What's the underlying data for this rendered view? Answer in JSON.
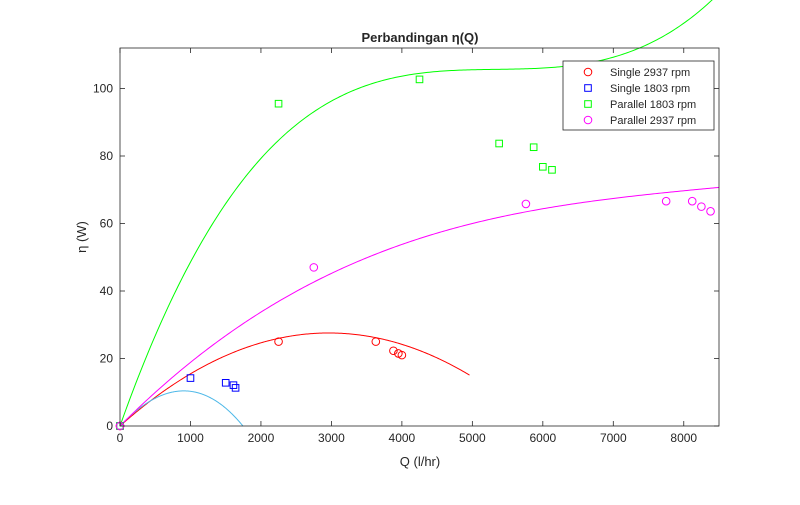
{
  "chart_data": {
    "type": "scatter",
    "title": "Perbandingan η(Q)",
    "xlabel": "Q (l/hr)",
    "ylabel": "η (W)",
    "xlim": [
      0,
      8500
    ],
    "ylim": [
      0,
      112
    ],
    "xticks": [
      0,
      1000,
      2000,
      3000,
      4000,
      5000,
      6000,
      7000,
      8000
    ],
    "yticks": [
      0,
      20,
      40,
      60,
      80,
      100
    ],
    "grid": false,
    "legend_position": "top-right",
    "series": [
      {
        "name": "Single 2937 rpm",
        "marker": "circle",
        "color": "#ff0000",
        "points": [
          [
            0,
            0
          ],
          [
            2250,
            25
          ],
          [
            3630,
            25
          ],
          [
            3880,
            22.3
          ],
          [
            3950,
            21.5
          ],
          [
            4000,
            21
          ]
        ],
        "fit_coeffs": [
          0,
          0.018594,
          -3.136e-06
        ],
        "fit_color": "#ff0000",
        "fit_xmax": 4960
      },
      {
        "name": "Single 1803 rpm",
        "marker": "square",
        "color": "#0000ff",
        "points": [
          [
            0,
            0
          ],
          [
            1000,
            14.2
          ],
          [
            1500,
            12.8
          ],
          [
            1610,
            12.1
          ],
          [
            1640,
            11.3
          ]
        ],
        "fit_coeffs": [
          0,
          0.022,
          -1.052e-05,
          -1.2e-09
        ],
        "fit_color": "#4db8e8",
        "fit_xmax": 2070
      },
      {
        "name": "Parallel 1803 rpm",
        "marker": "square",
        "color": "#00ff00",
        "points": [
          [
            0,
            0
          ],
          [
            2250,
            95.5
          ],
          [
            4250,
            102.7
          ],
          [
            5380,
            83.7
          ],
          [
            5870,
            82.6
          ],
          [
            6000,
            76.8
          ],
          [
            6130,
            75.9
          ]
        ],
        "fit_coeffs": [
          0,
          0.058846,
          -1.0974e-05,
          6.8537e-10
        ],
        "fit_color": "#00ff00",
        "fit_xmax": 8500
      },
      {
        "name": "Parallel 2937 rpm",
        "marker": "circle",
        "color": "#ff00ff",
        "points": [
          [
            0,
            0
          ],
          [
            2750,
            47
          ],
          [
            5760,
            65.8
          ],
          [
            7750,
            66.6
          ],
          [
            8120,
            66.6
          ],
          [
            8250,
            65
          ],
          [
            8380,
            63.6
          ]
        ],
        "fit_coeffs": [
          0,
          0.021,
          -2.24e-06,
          8.8e-11
        ],
        "fit_color": "#ff00ff",
        "fit_xmax": 8500
      }
    ]
  }
}
